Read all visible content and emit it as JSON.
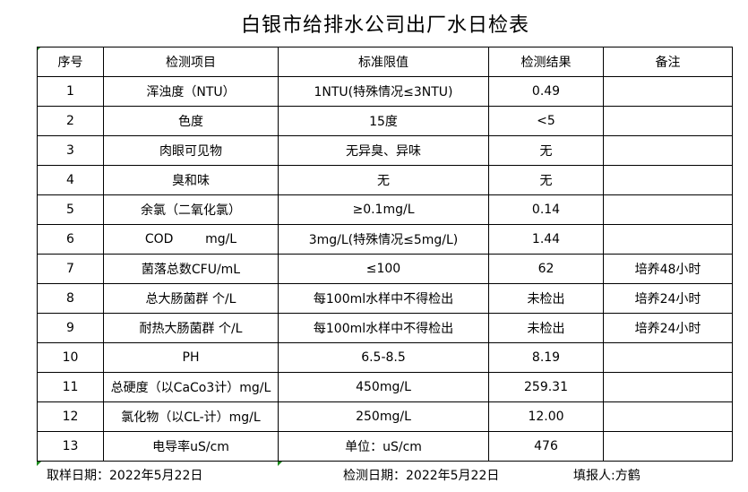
{
  "title": "白银市给排水公司出厂水日检表",
  "table": {
    "headers": [
      "序号",
      "检测项目",
      "标准限值",
      "检测结果",
      "备注"
    ],
    "rows": [
      [
        "1",
        "浑浊度（NTU）",
        "1NTU(特殊情况≤3NTU)",
        "0.49",
        ""
      ],
      [
        "2",
        "色度",
        "15度",
        "<5",
        ""
      ],
      [
        "3",
        "肉眼可见物",
        "无异臭、异味",
        "无",
        ""
      ],
      [
        "4",
        "臭和味",
        "无",
        "无",
        ""
      ],
      [
        "5",
        "余氯（二氧化氯）",
        "≥0.1mg/L",
        "0.14",
        ""
      ],
      [
        "6",
        "COD        mg/L",
        "3mg/L(特殊情况≤5mg/L)",
        "1.44",
        ""
      ],
      [
        "7",
        "菌落总数CFU/mL",
        "≤100",
        "62",
        "培养48小时"
      ],
      [
        "8",
        "总大肠菌群 个/L",
        "每100ml水样中不得检出",
        "未检出",
        "培养24小时"
      ],
      [
        "9",
        "耐热大肠菌群 个/L",
        "每100ml水样中不得检出",
        "未检出",
        "培养24小时"
      ],
      [
        "10",
        "PH",
        "6.5-8.5",
        "8.19",
        ""
      ],
      [
        "11",
        "总硬度（以CaCo3计）mg/L",
        "450mg/L",
        "259.31",
        ""
      ],
      [
        "12",
        "氯化物（以CL-计）mg/L",
        "250mg/L",
        "12.00",
        ""
      ],
      [
        "13",
        "电导率uS/cm",
        "单位：uS/cm",
        "476",
        ""
      ]
    ]
  },
  "footer": {
    "sampling_date": "取样日期：2022年5月22日",
    "test_date": "检测日期：2022年5月22日",
    "reporter": "填报人:方鹤"
  }
}
